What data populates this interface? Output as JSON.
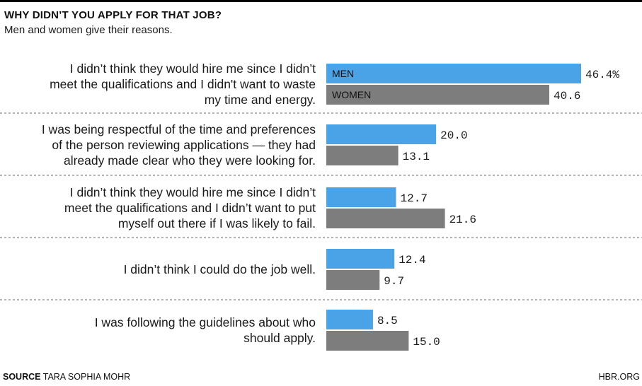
{
  "header": {
    "title": "WHY DIDN’T YOU APPLY FOR THAT JOB?",
    "subtitle": "Men and women give their reasons."
  },
  "footer": {
    "source_label": "SOURCE",
    "source_text": "TARA SOPHIA MOHR",
    "brand": "HBR.ORG"
  },
  "colors": {
    "men": "#4aa3e6",
    "women": "#7d7d7d",
    "divider": "#9a9a9a"
  },
  "chart_data": {
    "type": "bar",
    "orientation": "horizontal",
    "title": "WHY DIDN’T YOU APPLY FOR THAT JOB?",
    "subtitle": "Men and women give their reasons.",
    "categories": [
      [
        "I didn’t think they would hire me since I didn’t",
        "meet the qualifications and I didn't want to waste",
        "my time and energy."
      ],
      [
        "I was being respectful of the time and preferences",
        "of the person reviewing applications — they had",
        "already made clear who they were looking for."
      ],
      [
        "I didn’t think they would hire me since I didn’t",
        "meet the qualifications and I didn’t want to put",
        "myself out there if I was likely to fail."
      ],
      [
        "I didn’t think I could do the job well."
      ],
      [
        "I was following the guidelines about who",
        "should apply."
      ]
    ],
    "series": [
      {
        "name": "MEN",
        "values": [
          46.4,
          20.0,
          12.7,
          12.4,
          8.5
        ],
        "value_labels": [
          "46.4%",
          "20.0",
          "12.7",
          "12.4",
          "8.5"
        ]
      },
      {
        "name": "WOMEN",
        "values": [
          40.6,
          13.1,
          21.6,
          9.7,
          15.0
        ],
        "value_labels": [
          "40.6",
          "13.1",
          "21.6",
          "9.7",
          "15.0"
        ]
      }
    ],
    "legend": "inside first bars",
    "xlim": [
      0,
      46.4
    ],
    "grid": false
  }
}
